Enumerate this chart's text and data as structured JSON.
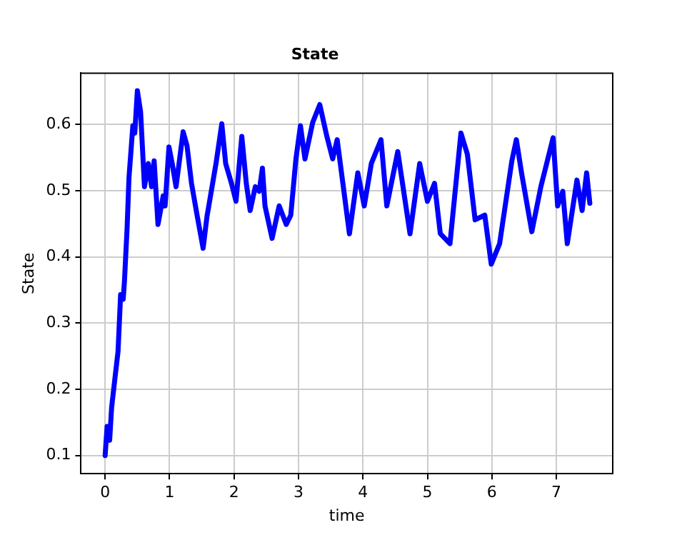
{
  "chart_data": {
    "type": "line",
    "title": "State",
    "xlabel": "time",
    "ylabel": "State",
    "xlim": [
      -0.375,
      7.875
    ],
    "xticks": [
      0,
      1,
      2,
      3,
      4,
      5,
      6,
      7
    ],
    "ylim": [
      0.0725,
      0.6775
    ],
    "yticks": [
      0.1,
      0.2,
      0.3,
      0.4,
      0.5,
      0.6
    ],
    "grid": true,
    "legend": false,
    "marker": "none",
    "line_style": "solid",
    "series": [
      {
        "color": "#0000ff",
        "x": [
          0,
          0.03,
          0.07,
          0.1,
          0.15,
          0.2,
          0.24,
          0.28,
          0.3,
          0.34,
          0.37,
          0.43,
          0.46,
          0.5,
          0.55,
          0.61,
          0.67,
          0.72,
          0.76,
          0.82,
          0.9,
          0.93,
          0.99,
          1.04,
          1.1,
          1.21,
          1.27,
          1.34,
          1.43,
          1.52,
          1.58,
          1.72,
          1.81,
          1.87,
          1.96,
          2.03,
          2.12,
          2.19,
          2.25,
          2.33,
          2.39,
          2.44,
          2.48,
          2.59,
          2.7,
          2.81,
          2.88,
          2.96,
          3.03,
          3.1,
          3.22,
          3.33,
          3.44,
          3.53,
          3.6,
          3.79,
          3.92,
          4.02,
          4.13,
          4.28,
          4.37,
          4.54,
          4.73,
          4.88,
          5.0,
          5.11,
          5.2,
          5.35,
          5.52,
          5.62,
          5.74,
          5.89,
          5.99,
          6.12,
          6.31,
          6.38,
          6.46,
          6.62,
          6.76,
          6.95,
          7.02,
          7.1,
          7.17,
          7.32,
          7.4,
          7.47,
          7.52
        ],
        "values": [
          0.1,
          0.144,
          0.123,
          0.172,
          0.215,
          0.257,
          0.343,
          0.336,
          0.364,
          0.442,
          0.52,
          0.598,
          0.587,
          0.651,
          0.619,
          0.506,
          0.541,
          0.506,
          0.545,
          0.449,
          0.492,
          0.477,
          0.566,
          0.541,
          0.506,
          0.589,
          0.568,
          0.511,
          0.461,
          0.413,
          0.461,
          0.541,
          0.601,
          0.541,
          0.511,
          0.484,
          0.582,
          0.511,
          0.47,
          0.506,
          0.499,
          0.534,
          0.477,
          0.428,
          0.477,
          0.449,
          0.463,
          0.548,
          0.598,
          0.548,
          0.603,
          0.63,
          0.582,
          0.548,
          0.577,
          0.435,
          0.527,
          0.477,
          0.541,
          0.577,
          0.477,
          0.559,
          0.435,
          0.541,
          0.484,
          0.511,
          0.435,
          0.42,
          0.587,
          0.555,
          0.456,
          0.463,
          0.389,
          0.42,
          0.545,
          0.577,
          0.527,
          0.438,
          0.506,
          0.58,
          0.477,
          0.499,
          0.42,
          0.516,
          0.47,
          0.527,
          0.481
        ]
      }
    ]
  }
}
